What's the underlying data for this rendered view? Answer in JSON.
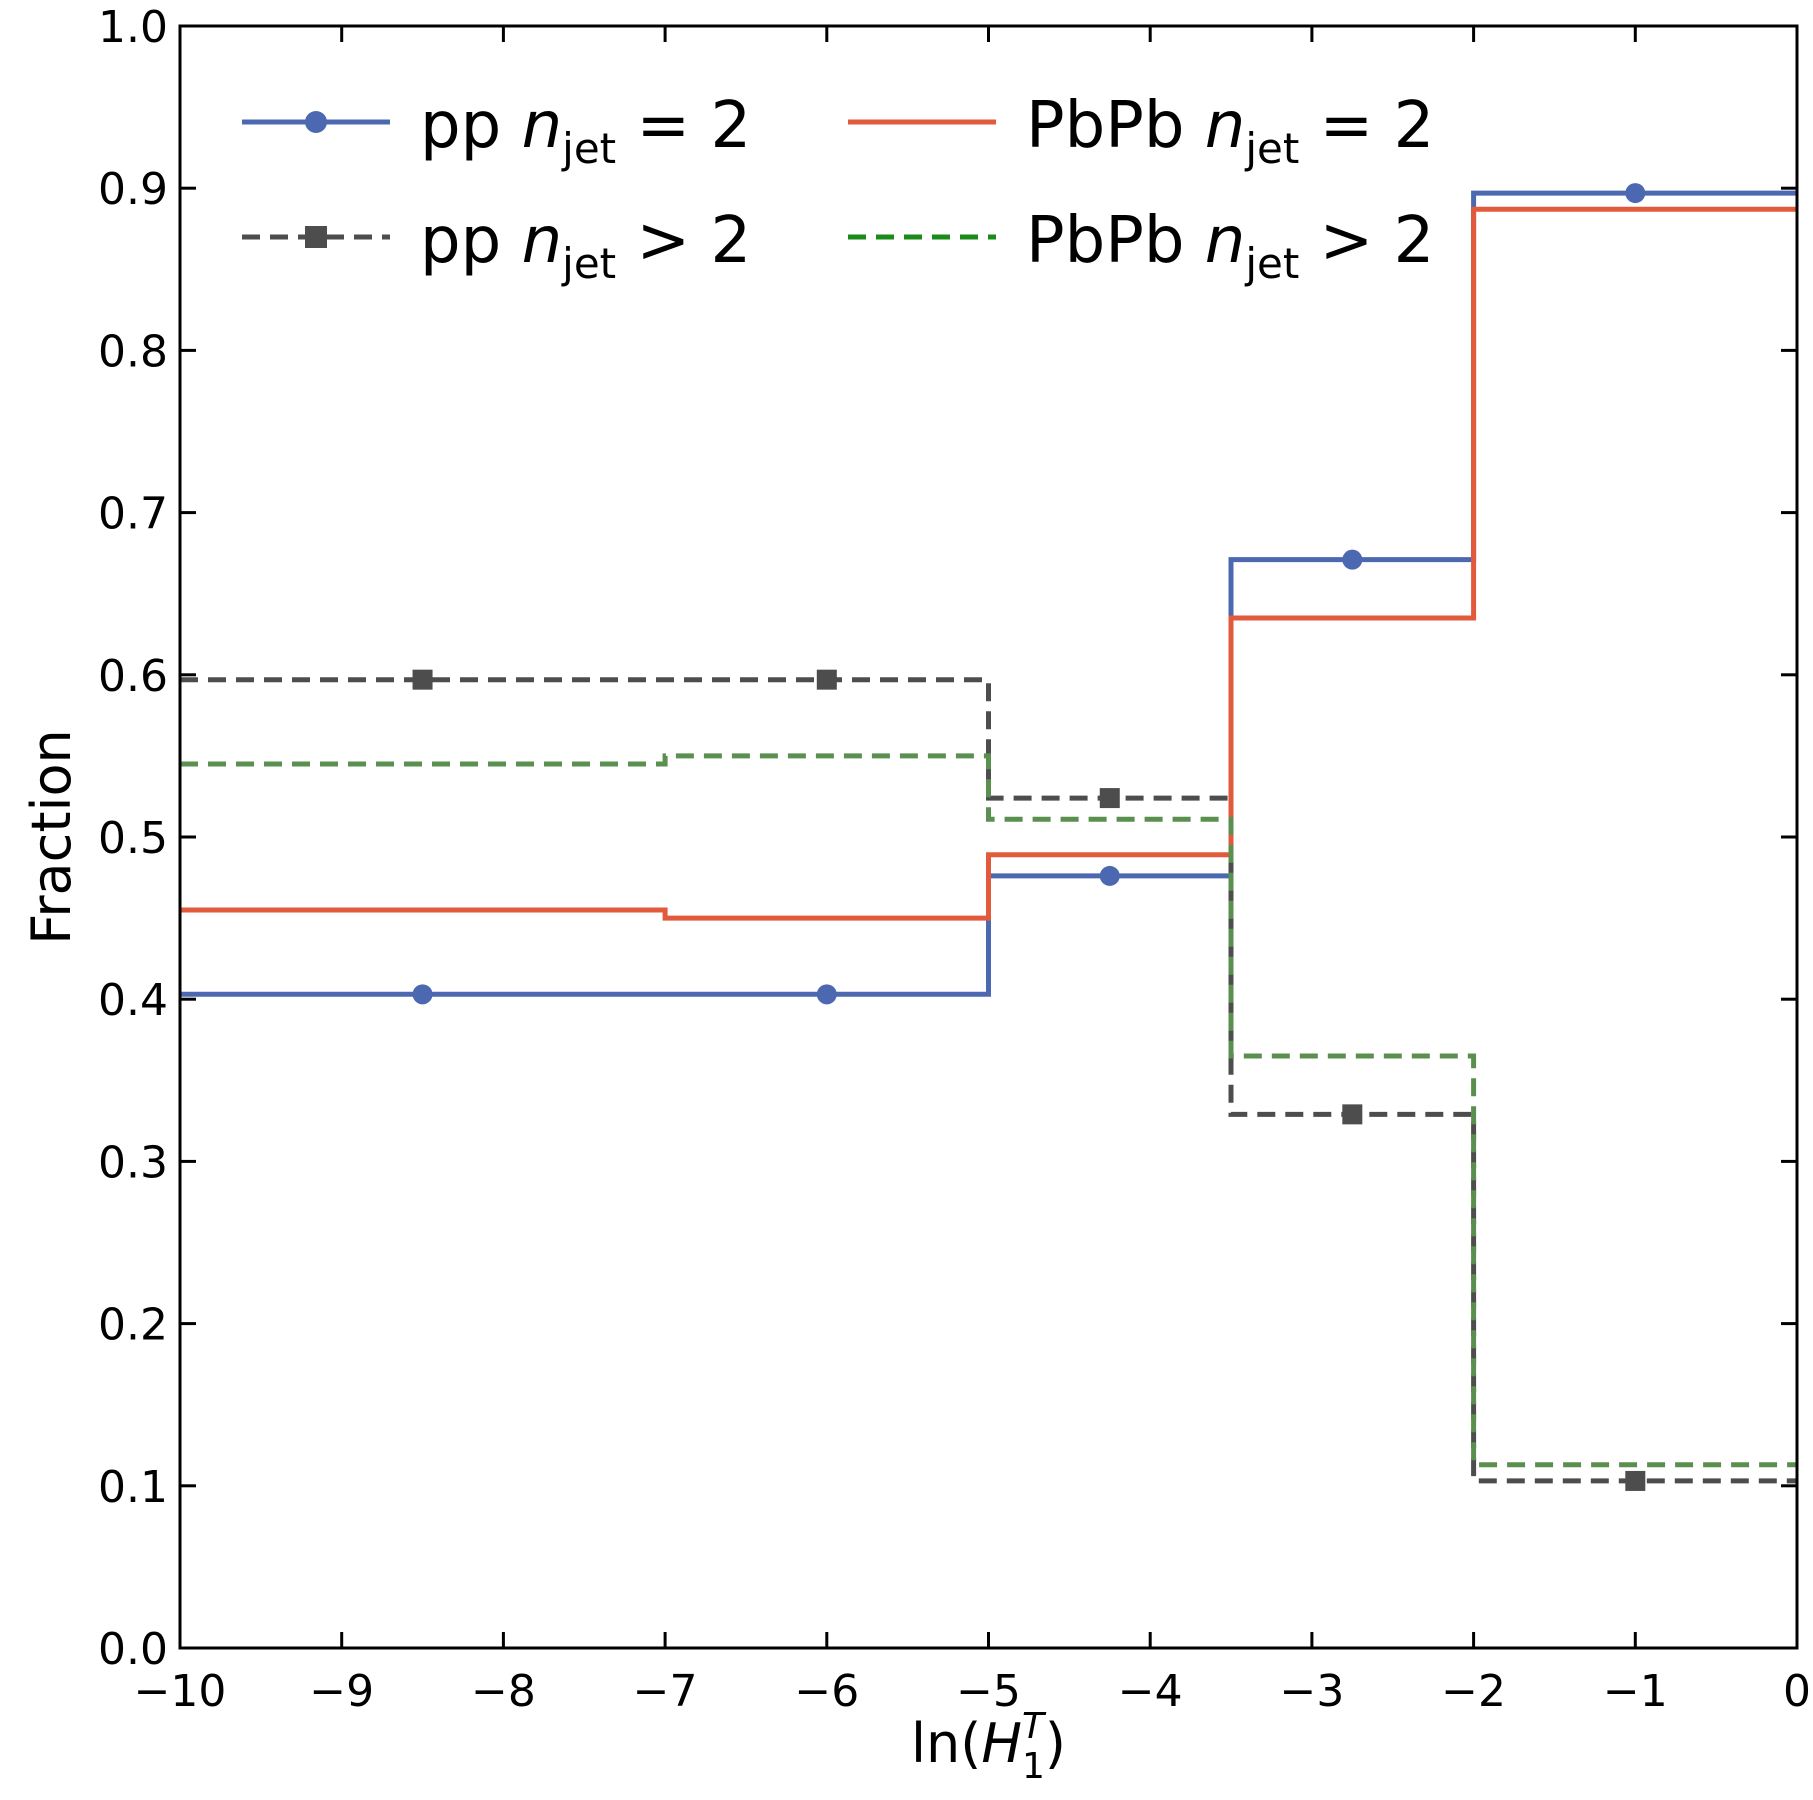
{
  "chart_data": {
    "type": "line",
    "style": "step histogram with bin-center markers",
    "xlabel": {
      "prefix": "ln(",
      "var": "H",
      "sup": "T",
      "sub": "1",
      "suffix": ")"
    },
    "ylabel": "Fraction",
    "xlim": [
      -10,
      0
    ],
    "ylim": [
      0,
      1
    ],
    "xticks": [
      -10,
      -9,
      -8,
      -7,
      -6,
      -5,
      -4,
      -3,
      -2,
      -1,
      0
    ],
    "xtick_labels": [
      "−10",
      "−9",
      "−8",
      "−7",
      "−6",
      "−5",
      "−4",
      "−3",
      "−2",
      "−1",
      "0"
    ],
    "yticks": [
      0.0,
      0.1,
      0.2,
      0.3,
      0.4,
      0.5,
      0.6,
      0.7,
      0.8,
      0.9,
      1.0
    ],
    "ytick_labels": [
      "0.0",
      "0.1",
      "0.2",
      "0.3",
      "0.4",
      "0.5",
      "0.6",
      "0.7",
      "0.8",
      "0.9",
      "1.0"
    ],
    "grid": false,
    "legend_position": "top-left",
    "bin_edges": [
      -10,
      -7,
      -5,
      -3.5,
      -2,
      0
    ],
    "bin_centers": [
      -8.5,
      -6,
      -4.25,
      -2.75,
      -1
    ],
    "series": [
      {
        "name": {
          "system": "pp",
          "var": "n",
          "sub": "jet",
          "rel": "= 2"
        },
        "color": "#4c68b0",
        "dashed": false,
        "marker": "circle",
        "values": [
          0.403,
          0.403,
          0.476,
          0.671,
          0.897
        ]
      },
      {
        "name": {
          "system": "pp",
          "var": "n",
          "sub": "jet",
          "rel": "> 2"
        },
        "color": "#4d4d4d",
        "dashed": true,
        "marker": "square",
        "values": [
          0.597,
          0.597,
          0.524,
          0.329,
          0.103
        ]
      },
      {
        "name": {
          "system": "PbPb",
          "var": "n",
          "sub": "jet",
          "rel": "= 2"
        },
        "color": "#e25a3c",
        "dashed": false,
        "marker": "none",
        "values": [
          0.455,
          0.45,
          0.489,
          0.635,
          0.887
        ]
      },
      {
        "name": {
          "system": "PbPb",
          "var": "n",
          "sub": "jet",
          "rel": "> 2"
        },
        "color": "#5a8f4f",
        "legend_color": "#1a8a1a",
        "dashed": true,
        "marker": "none",
        "values": [
          0.545,
          0.55,
          0.511,
          0.365,
          0.113
        ]
      }
    ]
  }
}
